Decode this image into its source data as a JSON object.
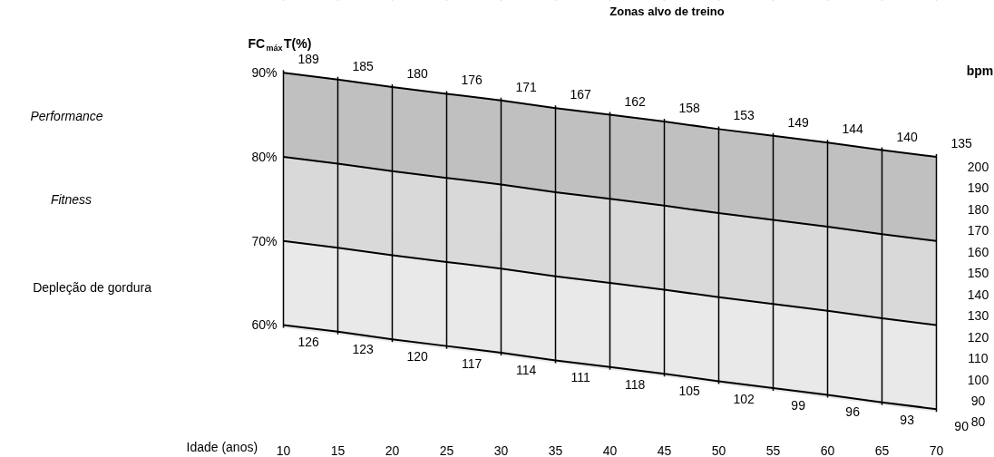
{
  "chart_data": {
    "type": "area",
    "title": "Zonas alvo de treino",
    "xlabel": "Idade (anos)",
    "ylabel": "FC$_{máx}$T(%)",
    "y2label": "bpm",
    "x": [
      10,
      15,
      20,
      25,
      30,
      35,
      40,
      45,
      50,
      55,
      60,
      65,
      70
    ],
    "xlim": [
      -16,
      75.33
    ],
    "xticks": [
      10,
      15,
      20,
      25,
      30,
      35,
      40,
      45,
      50,
      55,
      60,
      65,
      70
    ],
    "ylim": [
      44.25,
      98.6
    ],
    "yticks": [
      {
        "value": 60,
        "label": "60%"
      },
      {
        "value": 70,
        "label": "70%"
      },
      {
        "value": 80,
        "label": "80%"
      },
      {
        "value": 90,
        "label": "90%"
      }
    ],
    "y2lim": [
      63.4,
      277.9
    ],
    "y2ticks": [
      80,
      90,
      100,
      110,
      120,
      130,
      140,
      150,
      160,
      170,
      180,
      190,
      200
    ],
    "grid": "x",
    "series": [
      {
        "color": "#c0c0c0",
        "values": [
          90,
          89.2,
          88.3,
          87.5,
          86.7,
          85.8,
          85,
          84.2,
          83.3,
          82.5,
          81.7,
          80.8,
          80
        ]
      },
      {
        "color": "#d9d9d9",
        "values": [
          80,
          79.2,
          78.3,
          77.5,
          76.7,
          75.8,
          75,
          74.2,
          73.3,
          72.5,
          71.7,
          70.8,
          70
        ]
      },
      {
        "color": "#e9e9e9",
        "values": [
          70,
          69.2,
          68.3,
          67.5,
          66.7,
          65.8,
          65,
          64.2,
          63.3,
          62.5,
          61.7,
          60.8,
          60
        ]
      },
      {
        "type": "line",
        "color": "#000000",
        "values": [
          60,
          59.2,
          58.3,
          57.5,
          56.7,
          55.8,
          55,
          54.2,
          53.3,
          52.5,
          51.7,
          50.8,
          50
        ]
      }
    ],
    "annotations": [
      {
        "text": "189",
        "x": 10,
        "y": 90
      },
      {
        "text": "185",
        "x": 15,
        "y": 89.2
      },
      {
        "text": "180",
        "x": 20,
        "y": 88.3
      },
      {
        "text": "176",
        "x": 25,
        "y": 87.5
      },
      {
        "text": "171",
        "x": 30,
        "y": 86.7
      },
      {
        "text": "167",
        "x": 35,
        "y": 85.8
      },
      {
        "text": "162",
        "x": 40,
        "y": 85
      },
      {
        "text": "158",
        "x": 45,
        "y": 84.2
      },
      {
        "text": "153",
        "x": 50,
        "y": 83.3
      },
      {
        "text": "149",
        "x": 55,
        "y": 82.5
      },
      {
        "text": "144",
        "x": 60,
        "y": 81.7
      },
      {
        "text": "140",
        "x": 65,
        "y": 80.8
      },
      {
        "text": "135",
        "x": 70,
        "y": 80
      },
      {
        "text": "126",
        "x": 10,
        "y": 60
      },
      {
        "text": "123",
        "x": 15,
        "y": 59.2
      },
      {
        "text": "120",
        "x": 20,
        "y": 58.3
      },
      {
        "text": "117",
        "x": 25,
        "y": 57.5
      },
      {
        "text": "114",
        "x": 30,
        "y": 56.7
      },
      {
        "text": "111",
        "x": 35,
        "y": 55.8
      },
      {
        "text": "118",
        "x": 40,
        "y": 55
      },
      {
        "text": "105",
        "x": 45,
        "y": 54.2
      },
      {
        "text": "102",
        "x": 50,
        "y": 53.3
      },
      {
        "text": "99",
        "x": 55,
        "y": 52.5
      },
      {
        "text": "96",
        "x": 60,
        "y": 51.7
      },
      {
        "text": "93",
        "x": 65,
        "y": 50.8
      },
      {
        "text": "90",
        "x": 70,
        "y": 50
      },
      "Performance",
      "Fitness",
      "Depleção de  gordura"
    ]
  }
}
